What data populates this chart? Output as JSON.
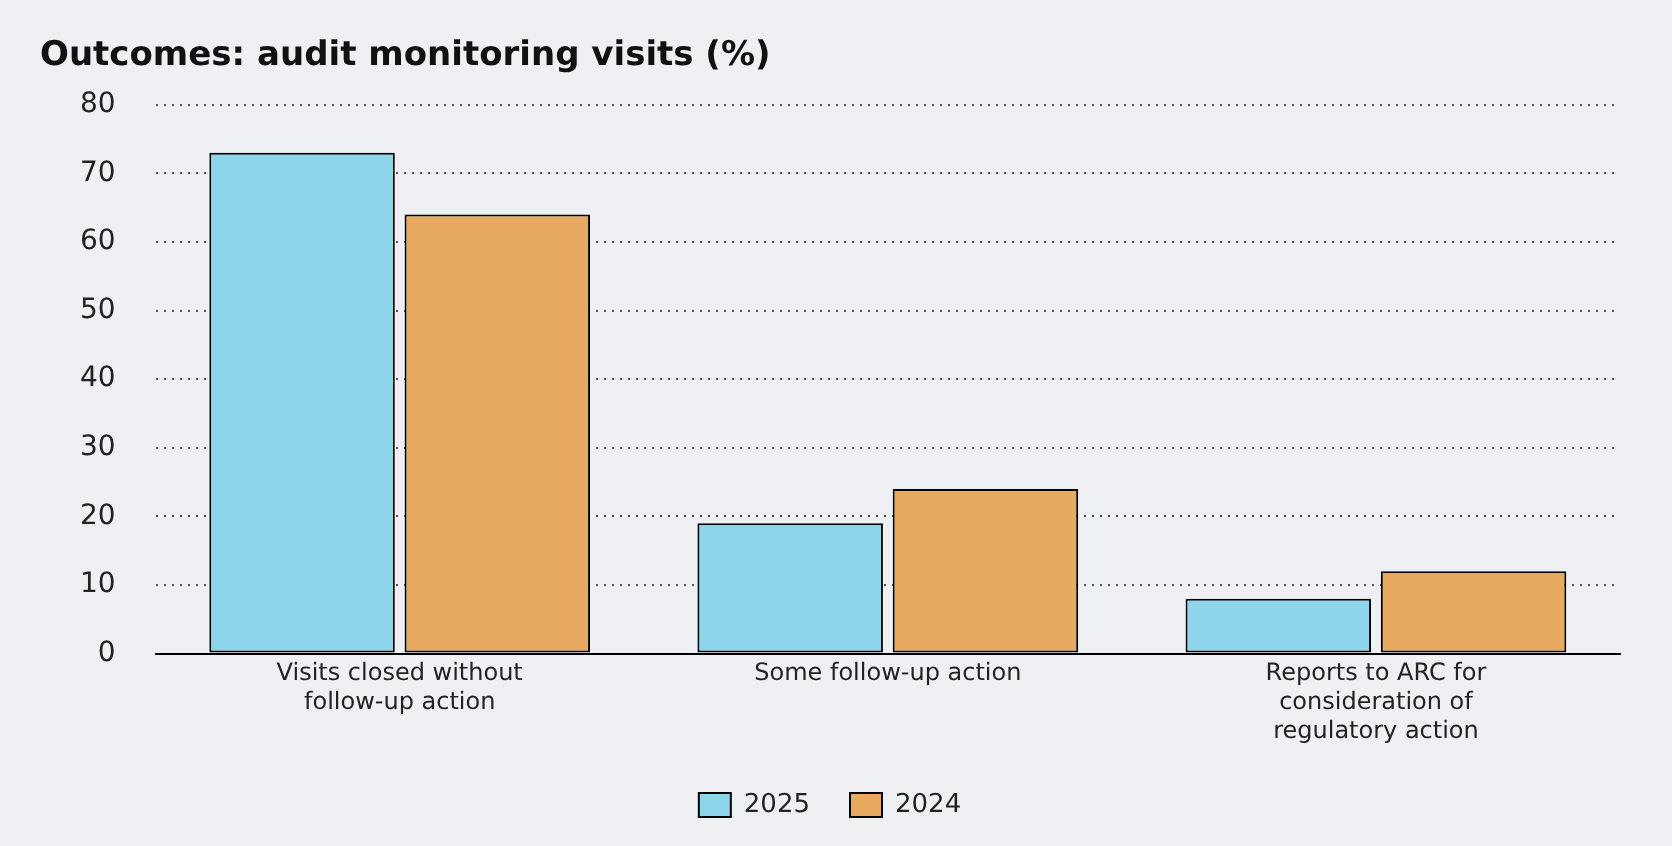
{
  "chart_data": {
    "type": "bar",
    "title": "Outcomes: audit monitoring visits (%)",
    "categories": [
      "Visits closed without follow-up action",
      "Some follow-up action",
      "Reports to ARC for consideration of regulatory action"
    ],
    "series": [
      {
        "name": "2025",
        "color": "#8dd5ea",
        "values": [
          73,
          19,
          8
        ]
      },
      {
        "name": "2024",
        "color": "#e8a961",
        "values": [
          64,
          24,
          12
        ]
      }
    ],
    "ylim": [
      0,
      80
    ],
    "yticks": [
      0,
      10,
      20,
      30,
      40,
      50,
      60,
      70,
      80
    ],
    "grid": "y",
    "legend": "bottom"
  }
}
